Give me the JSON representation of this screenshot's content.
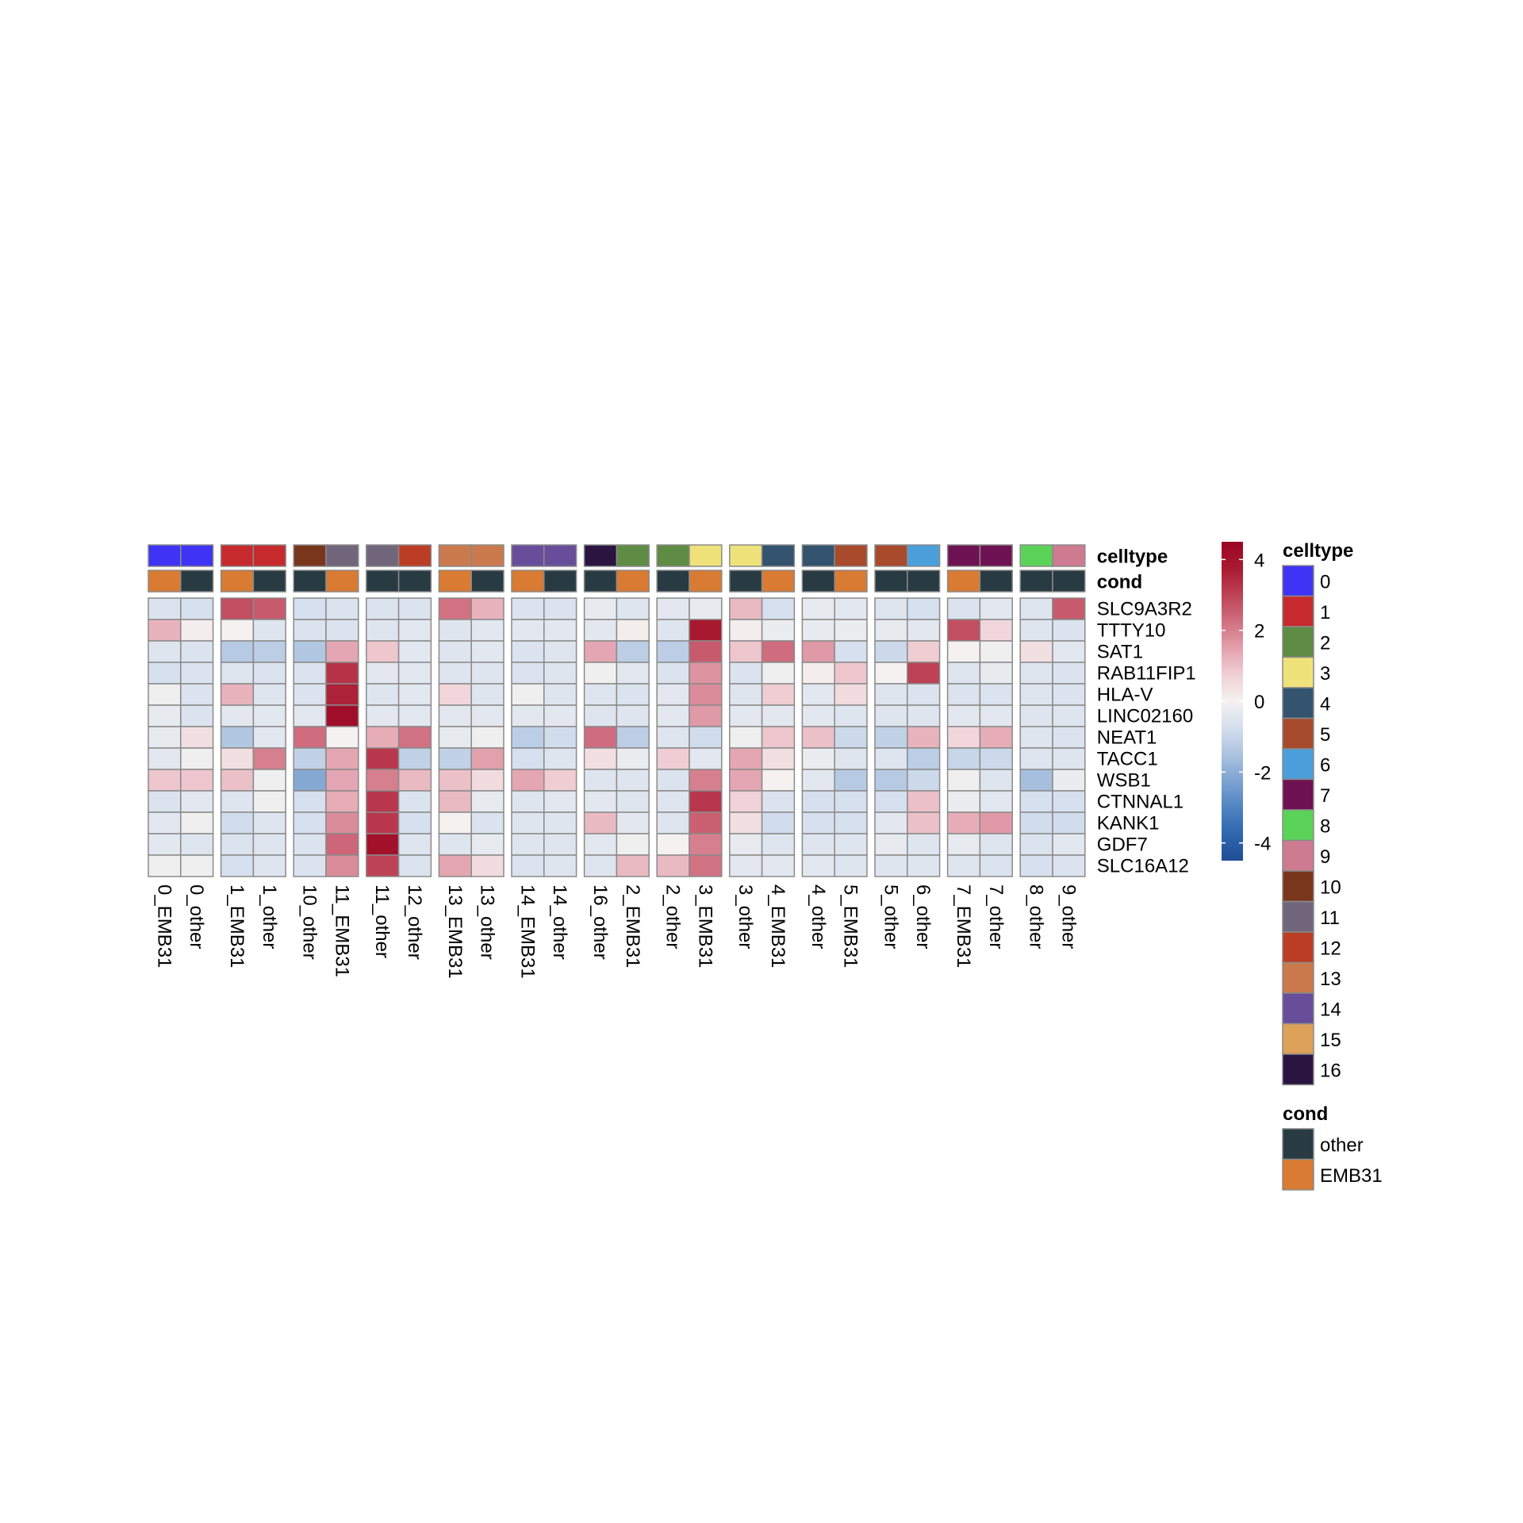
{
  "chart_data": {
    "type": "heatmap",
    "title": "",
    "rows": [
      "SLC9A3R2",
      "TTTY10",
      "SAT1",
      "RAB11FIP1",
      "HLA-V",
      "LINC02160",
      "NEAT1",
      "TACC1",
      "WSB1",
      "CTNNAL1",
      "KANK1",
      "GDF7",
      "SLC16A12"
    ],
    "columns": [
      "0_EMB31",
      "0_other",
      "1_EMB31",
      "1_other",
      "10_other",
      "11_EMB31",
      "11_other",
      "12_other",
      "13_EMB31",
      "13_other",
      "14_EMB31",
      "14_other",
      "16_other",
      "2_EMB31",
      "2_other",
      "3_EMB31",
      "3_other",
      "4_EMB31",
      "4_other",
      "5_EMB31",
      "5_other",
      "6_other",
      "7_EMB31",
      "7_other",
      "8_other",
      "9_other"
    ],
    "column_groups_of": 2,
    "values": [
      [
        -0.6,
        -0.7,
        2.8,
        2.6,
        -0.7,
        -0.6,
        -0.6,
        -0.6,
        2.2,
        1.2,
        -0.6,
        -0.6,
        -0.3,
        -0.5,
        -0.4,
        -0.3,
        1.1,
        -0.7,
        -0.3,
        -0.4,
        -0.5,
        -0.7,
        -0.6,
        -0.4,
        -0.5,
        2.6
      ],
      [
        1.2,
        0.1,
        0.0,
        -0.5,
        -0.6,
        -0.6,
        -0.5,
        -0.4,
        -0.5,
        -0.4,
        -0.4,
        -0.4,
        -0.4,
        0.1,
        -0.5,
        3.8,
        0.1,
        -0.2,
        -0.3,
        -0.2,
        -0.3,
        -0.4,
        2.8,
        0.6,
        -0.5,
        -0.6
      ],
      [
        -0.5,
        -0.6,
        -1.3,
        -1.2,
        -1.4,
        1.4,
        0.9,
        -0.4,
        -0.5,
        -0.4,
        -0.6,
        -0.5,
        1.4,
        -1.2,
        -1.2,
        2.6,
        0.9,
        2.3,
        1.6,
        -0.7,
        -0.9,
        0.8,
        0.0,
        -0.1,
        0.4,
        -0.4
      ],
      [
        -0.7,
        -0.6,
        -0.5,
        -0.6,
        -0.6,
        3.3,
        -0.4,
        -0.4,
        -0.5,
        -0.5,
        -0.6,
        -0.5,
        -0.1,
        -0.4,
        -0.6,
        1.7,
        -0.6,
        -0.1,
        0.1,
        0.9,
        0.0,
        3.0,
        -0.5,
        -0.3,
        -0.5,
        -0.6
      ],
      [
        -0.1,
        -0.6,
        1.2,
        -0.5,
        -0.6,
        3.6,
        -0.5,
        -0.4,
        0.6,
        -0.5,
        -0.1,
        -0.5,
        -0.5,
        -0.6,
        -0.4,
        1.8,
        -0.5,
        0.8,
        -0.4,
        0.5,
        -0.5,
        -0.6,
        -0.6,
        -0.6,
        -0.5,
        -0.6
      ],
      [
        -0.3,
        -0.6,
        -0.4,
        -0.4,
        -0.4,
        4.2,
        -0.4,
        -0.4,
        -0.4,
        -0.4,
        -0.4,
        -0.4,
        -0.5,
        -0.5,
        -0.4,
        1.6,
        -0.4,
        -0.4,
        -0.4,
        -0.5,
        -0.5,
        -0.5,
        -0.4,
        -0.4,
        -0.5,
        -0.5
      ],
      [
        -0.3,
        0.4,
        -1.4,
        -0.4,
        2.3,
        0.0,
        1.3,
        2.2,
        -0.3,
        -0.1,
        -1.2,
        -0.8,
        2.3,
        -1.2,
        -0.5,
        -0.8,
        -0.1,
        0.9,
        1.0,
        -0.9,
        -1.1,
        1.2,
        0.6,
        1.3,
        -0.5,
        -0.6
      ],
      [
        -0.4,
        -0.1,
        0.4,
        2.0,
        -1.1,
        1.4,
        3.2,
        -1.1,
        -1.1,
        1.5,
        -0.7,
        -0.5,
        0.4,
        -0.2,
        0.8,
        -0.4,
        1.4,
        0.4,
        -0.2,
        -0.5,
        -0.5,
        -1.2,
        -1.0,
        -0.9,
        -0.5,
        -0.5
      ],
      [
        0.9,
        0.9,
        1.0,
        -0.1,
        -2.1,
        1.4,
        2.0,
        1.1,
        1.0,
        0.5,
        1.4,
        0.8,
        -0.5,
        -0.5,
        -0.6,
        2.0,
        1.4,
        0.0,
        -0.4,
        -1.3,
        -1.3,
        -0.9,
        -0.1,
        -0.5,
        -1.6,
        -0.2
      ],
      [
        -0.6,
        -0.4,
        -0.5,
        -0.1,
        -0.7,
        1.3,
        3.2,
        -0.6,
        1.1,
        -0.3,
        -0.5,
        -0.4,
        -0.4,
        -0.5,
        -0.5,
        3.2,
        0.7,
        -0.6,
        -0.7,
        -0.7,
        -0.7,
        1.0,
        -0.2,
        -0.4,
        -0.7,
        -0.7
      ],
      [
        -0.4,
        -0.1,
        -0.8,
        -0.5,
        -0.7,
        1.8,
        3.2,
        -0.7,
        0.0,
        -0.6,
        -0.5,
        -0.5,
        1.1,
        -0.4,
        -0.5,
        2.5,
        0.4,
        -0.8,
        -0.7,
        -0.7,
        -0.4,
        1.0,
        1.3,
        1.6,
        -0.8,
        -0.8
      ],
      [
        -0.4,
        -0.5,
        -0.6,
        -0.5,
        -0.6,
        2.4,
        4.1,
        -0.5,
        -0.5,
        -0.3,
        -0.5,
        -0.5,
        -0.4,
        -0.1,
        0.0,
        2.0,
        -0.3,
        -0.5,
        -0.5,
        -0.5,
        -0.3,
        -0.5,
        -0.3,
        -0.5,
        -0.6,
        -0.4
      ],
      [
        -0.1,
        -0.1,
        -0.7,
        -0.5,
        -0.6,
        1.8,
        3.0,
        -0.6,
        1.4,
        0.5,
        -0.6,
        -0.5,
        -0.5,
        1.1,
        1.1,
        2.2,
        -0.4,
        -0.4,
        -0.4,
        -0.5,
        -0.5,
        -0.5,
        -0.5,
        -0.6,
        -0.7,
        -0.6
      ]
    ],
    "annotations": {
      "celltype": [
        "0",
        "0",
        "1",
        "1",
        "10",
        "11",
        "11",
        "12",
        "13",
        "13",
        "14",
        "14",
        "16",
        "2",
        "2",
        "3",
        "3",
        "4",
        "4",
        "5",
        "5",
        "6",
        "7",
        "7",
        "8",
        "9"
      ],
      "cond": [
        "EMB31",
        "other",
        "EMB31",
        "other",
        "other",
        "EMB31",
        "other",
        "other",
        "EMB31",
        "other",
        "EMB31",
        "other",
        "other",
        "EMB31",
        "other",
        "EMB31",
        "other",
        "EMB31",
        "other",
        "EMB31",
        "other",
        "other",
        "EMB31",
        "other",
        "other",
        "other"
      ]
    },
    "annotation_labels": [
      "celltype",
      "cond"
    ],
    "colorbar": {
      "range": [
        -4.5,
        4.5
      ],
      "ticks": [
        4,
        2,
        0,
        -2,
        -4
      ],
      "tick_labels": [
        "4",
        "2",
        "0",
        "-2",
        "-4"
      ],
      "colors": [
        "#1F4E94",
        "#2E67AF",
        "#4F84C2",
        "#7DA3D1",
        "#ACC3E0",
        "#D4DFEE",
        "#F4F1F0",
        "#F0D0D6",
        "#E2A0AC",
        "#D06F80",
        "#BD4256",
        "#A91A30",
        "#9A0424"
      ]
    },
    "legends": [
      {
        "title": "celltype",
        "items": [
          {
            "label": "0",
            "color": "#3F33F5"
          },
          {
            "label": "1",
            "color": "#C62A2C"
          },
          {
            "label": "2",
            "color": "#5E8C44"
          },
          {
            "label": "3",
            "color": "#EFE27A"
          },
          {
            "label": "4",
            "color": "#33536F"
          },
          {
            "label": "5",
            "color": "#A84A2C"
          },
          {
            "label": "6",
            "color": "#4B9FDB"
          },
          {
            "label": "7",
            "color": "#6E1253"
          },
          {
            "label": "8",
            "color": "#5BD258"
          },
          {
            "label": "9",
            "color": "#CE7A90"
          },
          {
            "label": "10",
            "color": "#7A361D"
          },
          {
            "label": "11",
            "color": "#72667C"
          },
          {
            "label": "12",
            "color": "#BB3D23"
          },
          {
            "label": "13",
            "color": "#CA7A4D"
          },
          {
            "label": "14",
            "color": "#684D9B"
          },
          {
            "label": "15",
            "color": "#DDA15A"
          },
          {
            "label": "16",
            "color": "#2B1440"
          }
        ]
      },
      {
        "title": "cond",
        "items": [
          {
            "label": "other",
            "color": "#283B42"
          },
          {
            "label": "EMB31",
            "color": "#D97B32"
          }
        ]
      }
    ]
  }
}
